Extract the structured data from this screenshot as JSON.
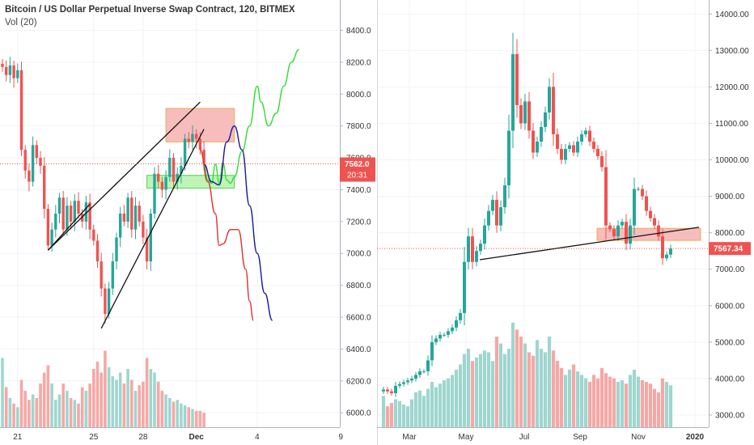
{
  "header": {
    "title": "Bitcoin / US Dollar Perpetual Inverse Swap Contract, 120, BITMEX",
    "indicator": "Vol (20)"
  },
  "colors": {
    "up": "#26a69a",
    "down": "#ef5350",
    "up_vol": "#9fd6cf",
    "down_vol": "#f5a8a5",
    "price_tag": "#ef5350",
    "zone_red": "#f7b6b6",
    "zone_green": "#b8f5b0",
    "proj_green": "#33dd33",
    "proj_blue": "#1a1a99",
    "proj_red": "#e03030"
  },
  "left_chart": {
    "price_label": "7562.0",
    "countdown": "20:31"
  },
  "right_chart": {
    "price_label": "7567.34"
  },
  "chart_data": [
    {
      "type": "candlestick",
      "title": "Bitcoin / US Dollar Perpetual Inverse Swap Contract, 120, BITMEX",
      "timeframe": "120",
      "x_ticks": [
        "21",
        "25",
        "28",
        "Dec",
        "4",
        "9"
      ],
      "y_ticks": [
        "6000.0",
        "6200.0",
        "6400.0",
        "6600.0",
        "6800.0",
        "7000.0",
        "7200.0",
        "7400.0",
        "7600.0",
        "7800.0",
        "8000.0",
        "8200.0",
        "8400.0"
      ],
      "ylim": [
        5940,
        8560
      ],
      "last_price": 7562.0,
      "price_path": [
        8170,
        8120,
        8180,
        8100,
        8150,
        7650,
        7520,
        7450,
        7680,
        7600,
        7550,
        7280,
        7050,
        7150,
        7250,
        7350,
        7150,
        7300,
        7200,
        7330,
        7250,
        7200,
        7320,
        7150,
        7080,
        6950,
        6780,
        6620,
        6780,
        6950,
        7100,
        7250,
        7200,
        7350,
        7150,
        7300,
        7200,
        7100,
        6950,
        7250,
        7500,
        7450,
        7400,
        7480,
        7600,
        7450,
        7500,
        7550,
        7720,
        7700,
        7750,
        7720,
        7650,
        7562
      ],
      "volume": [
        380,
        220,
        160,
        130,
        110,
        260,
        200,
        150,
        180,
        160,
        240,
        300,
        340,
        240,
        150,
        180,
        240,
        200,
        160,
        150,
        130,
        220,
        200,
        240,
        320,
        360,
        300,
        420,
        330,
        280,
        260,
        300,
        240,
        320,
        260,
        200,
        230,
        250,
        380,
        320,
        300,
        250,
        200,
        180,
        160,
        140,
        150,
        130,
        120,
        110,
        100,
        90,
        90,
        80
      ],
      "trendlines": [
        {
          "from": {
            "bar": 12,
            "price": 7020
          },
          "to": {
            "bar": 23,
            "price": 7310
          }
        },
        {
          "from": {
            "bar": 12,
            "price": 7020
          },
          "to": {
            "bar": 52,
            "price": 7950
          }
        },
        {
          "from": {
            "bar": 26,
            "price": 6530
          },
          "to": {
            "bar": 53,
            "price": 7780
          }
        }
      ],
      "zones": [
        {
          "color": "red",
          "bar_from": 43,
          "bar_to": 61,
          "price_low": 7700,
          "price_high": 7910
        },
        {
          "color": "green",
          "bar_from": 38,
          "bar_to": 61,
          "price_low": 7410,
          "price_high": 7490
        }
      ],
      "projections": {
        "green": [
          [
            53,
            7560
          ],
          [
            54,
            7460
          ],
          [
            55,
            7440
          ],
          [
            56,
            7560
          ],
          [
            57,
            7440
          ],
          [
            58,
            7570
          ],
          [
            59,
            7460
          ],
          [
            60,
            7440
          ],
          [
            61,
            7480
          ],
          [
            63,
            7640
          ],
          [
            65,
            7800
          ],
          [
            67,
            8050
          ],
          [
            68,
            7950
          ],
          [
            70,
            7800
          ],
          [
            72,
            7880
          ],
          [
            74,
            8050
          ],
          [
            76,
            8200
          ],
          [
            78,
            8280
          ]
        ],
        "blue": [
          [
            53,
            7560
          ],
          [
            55,
            7450
          ],
          [
            57,
            7430
          ],
          [
            59,
            7700
          ],
          [
            61,
            7800
          ],
          [
            63,
            7650
          ],
          [
            65,
            7300
          ],
          [
            67,
            7000
          ],
          [
            69,
            6750
          ],
          [
            71,
            6580
          ]
        ],
        "red": [
          [
            52,
            7650
          ],
          [
            54,
            7450
          ],
          [
            56,
            7250
          ],
          [
            57,
            7050
          ],
          [
            58,
            7060
          ],
          [
            60,
            7150
          ],
          [
            62,
            7150
          ],
          [
            64,
            6900
          ],
          [
            65,
            6700
          ],
          [
            66,
            6580
          ]
        ]
      }
    },
    {
      "type": "candlestick",
      "timeframe": "weekly",
      "x_ticks": [
        "Mar",
        "May",
        "Jul",
        "Sep",
        "Nov",
        "2020"
      ],
      "y_ticks": [
        "3000.00",
        "4000.00",
        "5000.00",
        "6000.00",
        "7000.00",
        "8000.00",
        "9000.00",
        "10000.00",
        "11000.00",
        "12000.00",
        "13000.00",
        "14000.00"
      ],
      "ylim": [
        2800,
        14250
      ],
      "last_price": 7567.34,
      "price_path": [
        3700,
        3650,
        3600,
        3800,
        3850,
        3900,
        3950,
        4000,
        4100,
        4200,
        4200,
        4500,
        5000,
        5100,
        5200,
        5200,
        5300,
        5400,
        5600,
        5800,
        7200,
        7900,
        7200,
        7500,
        7700,
        8200,
        8600,
        8900,
        8200,
        8700,
        9300,
        10800,
        12900,
        11500,
        11000,
        11600,
        10800,
        10200,
        10500,
        10900,
        11300,
        12000,
        10700,
        10300,
        10000,
        10300,
        10400,
        10200,
        10500,
        10700,
        10800,
        10500,
        10300,
        10100,
        9800,
        8200,
        8100,
        7900,
        8200,
        8300,
        7700,
        8200,
        9200,
        9200,
        9000,
        8600,
        8400,
        8200,
        7900,
        7300,
        7400,
        7567.34
      ],
      "volume": [
        180,
        120,
        140,
        160,
        150,
        130,
        120,
        160,
        200,
        210,
        180,
        220,
        260,
        230,
        250,
        270,
        280,
        300,
        330,
        360,
        420,
        450,
        380,
        400,
        420,
        440,
        430,
        380,
        520,
        480,
        420,
        450,
        600,
        560,
        520,
        480,
        430,
        410,
        500,
        450,
        430,
        520,
        440,
        380,
        340,
        300,
        330,
        360,
        320,
        300,
        280,
        260,
        300,
        280,
        340,
        310,
        290,
        280,
        260,
        270,
        250,
        300,
        330,
        290,
        270,
        260,
        250,
        220,
        200,
        280,
        260,
        240
      ],
      "trendlines": [
        {
          "from": {
            "date": "May",
            "price": 7260
          },
          "to": {
            "date": "2020",
            "price": 8150
          }
        }
      ],
      "zones": [
        {
          "color": "red",
          "from": "Oct",
          "to": "2020",
          "price_low": 7790,
          "price_high": 8120
        }
      ]
    }
  ]
}
